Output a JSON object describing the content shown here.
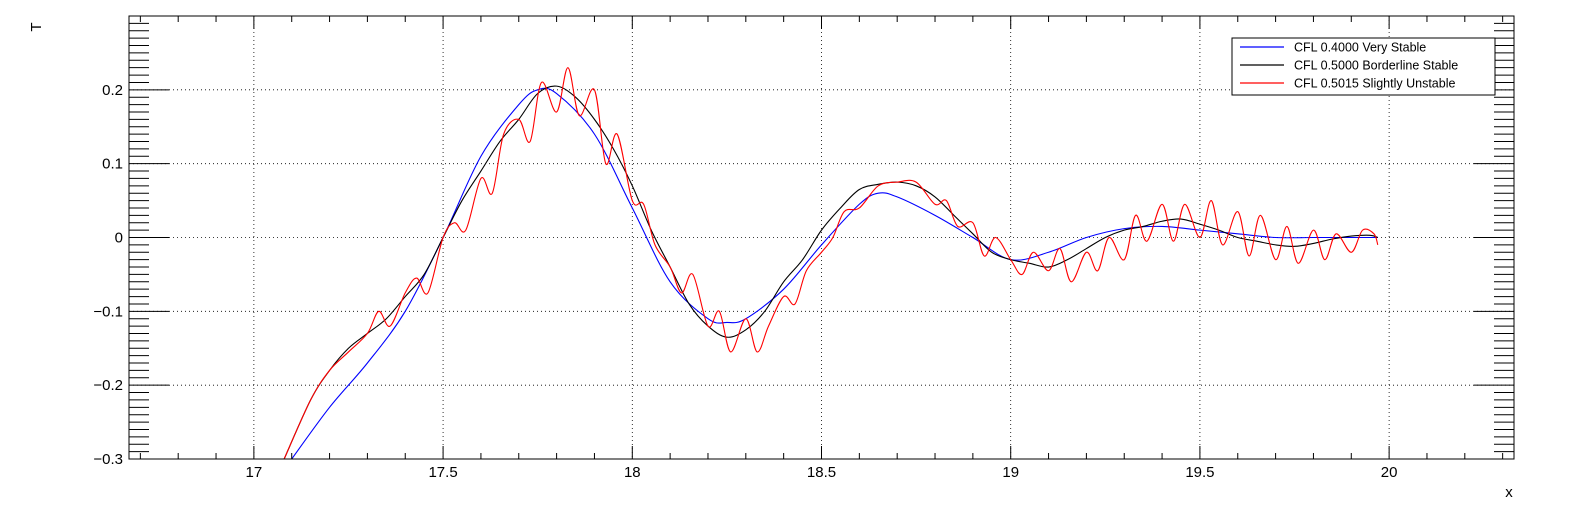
{
  "chart_data": {
    "type": "line",
    "xlabel": "x",
    "ylabel": "T",
    "xlim": [
      16.67,
      20.33
    ],
    "ylim": [
      -0.3,
      0.3
    ],
    "x_ticks": [
      17,
      17.5,
      18,
      18.5,
      19,
      19.5,
      20
    ],
    "x_tick_labels": [
      "17",
      "17.5",
      "18",
      "18.5",
      "19",
      "19.5",
      "20"
    ],
    "y_ticks": [
      -0.3,
      -0.2,
      -0.1,
      0,
      0.1,
      0.2
    ],
    "y_tick_labels": [
      "−0.3",
      "−0.2",
      "−0.1",
      "0",
      "0.1",
      "0.2"
    ],
    "grid": true,
    "legend_position": "top-right",
    "series": [
      {
        "name": "CFL 0.4000 Very Stable",
        "color": "#0000ff",
        "x": [
          17.1,
          17.2,
          17.3,
          17.4,
          17.5,
          17.6,
          17.7,
          17.75,
          17.8,
          17.9,
          18.0,
          18.1,
          18.2,
          18.25,
          18.3,
          18.4,
          18.5,
          18.6,
          18.65,
          18.7,
          18.8,
          18.9,
          19.0,
          19.1,
          19.2,
          19.3,
          19.4,
          19.5,
          19.6,
          19.7,
          19.8,
          19.9,
          19.97
        ],
        "y": [
          -0.3,
          -0.23,
          -0.17,
          -0.1,
          0.0,
          0.11,
          0.18,
          0.2,
          0.195,
          0.14,
          0.04,
          -0.06,
          -0.11,
          -0.115,
          -0.11,
          -0.07,
          -0.01,
          0.045,
          0.06,
          0.055,
          0.03,
          0.0,
          -0.03,
          -0.02,
          0.0,
          0.012,
          0.015,
          0.01,
          0.005,
          0.0,
          0.0,
          0.0,
          0.0
        ]
      },
      {
        "name": "CFL 0.5000 Borderline Stable",
        "color": "#000000",
        "x": [
          17.08,
          17.15,
          17.2,
          17.25,
          17.3,
          17.35,
          17.4,
          17.45,
          17.5,
          17.55,
          17.6,
          17.65,
          17.7,
          17.75,
          17.8,
          17.85,
          17.9,
          17.95,
          18.0,
          18.05,
          18.1,
          18.15,
          18.2,
          18.25,
          18.3,
          18.35,
          18.4,
          18.45,
          18.5,
          18.55,
          18.6,
          18.65,
          18.7,
          18.75,
          18.8,
          18.85,
          18.9,
          18.95,
          19.0,
          19.05,
          19.1,
          19.15,
          19.2,
          19.25,
          19.3,
          19.35,
          19.4,
          19.45,
          19.5,
          19.55,
          19.6,
          19.65,
          19.7,
          19.75,
          19.8,
          19.85,
          19.9,
          19.95,
          19.97
        ],
        "y": [
          -0.3,
          -0.22,
          -0.18,
          -0.15,
          -0.13,
          -0.11,
          -0.08,
          -0.05,
          0.0,
          0.05,
          0.09,
          0.13,
          0.16,
          0.195,
          0.205,
          0.19,
          0.16,
          0.12,
          0.07,
          0.01,
          -0.04,
          -0.09,
          -0.12,
          -0.135,
          -0.125,
          -0.1,
          -0.06,
          -0.03,
          0.01,
          0.04,
          0.065,
          0.072,
          0.075,
          0.07,
          0.055,
          0.03,
          0.005,
          -0.02,
          -0.03,
          -0.035,
          -0.04,
          -0.03,
          -0.015,
          0.0,
          0.01,
          0.015,
          0.022,
          0.025,
          0.018,
          0.01,
          0.0,
          -0.005,
          -0.01,
          -0.012,
          -0.008,
          -0.002,
          0.002,
          0.003,
          0.0
        ]
      },
      {
        "name": "CFL 0.5015 Slightly Unstable",
        "color": "#ff0000",
        "x": [
          17.08,
          17.15,
          17.2,
          17.25,
          17.3,
          17.33,
          17.36,
          17.4,
          17.43,
          17.46,
          17.5,
          17.53,
          17.56,
          17.6,
          17.63,
          17.66,
          17.7,
          17.73,
          17.76,
          17.8,
          17.83,
          17.86,
          17.9,
          17.93,
          17.96,
          18.0,
          18.03,
          18.06,
          18.1,
          18.13,
          18.16,
          18.2,
          18.23,
          18.26,
          18.3,
          18.33,
          18.36,
          18.4,
          18.43,
          18.46,
          18.5,
          18.53,
          18.56,
          18.6,
          18.65,
          18.7,
          18.75,
          18.8,
          18.83,
          18.86,
          18.9,
          18.93,
          18.96,
          19.0,
          19.03,
          19.06,
          19.1,
          19.13,
          19.16,
          19.2,
          19.23,
          19.26,
          19.3,
          19.33,
          19.36,
          19.4,
          19.43,
          19.46,
          19.5,
          19.53,
          19.56,
          19.6,
          19.63,
          19.66,
          19.7,
          19.73,
          19.76,
          19.8,
          19.83,
          19.86,
          19.9,
          19.93,
          19.96,
          19.97
        ],
        "y": [
          -0.3,
          -0.22,
          -0.18,
          -0.155,
          -0.13,
          -0.1,
          -0.12,
          -0.075,
          -0.055,
          -0.075,
          0.0,
          0.02,
          0.01,
          0.08,
          0.06,
          0.14,
          0.16,
          0.13,
          0.21,
          0.17,
          0.23,
          0.165,
          0.2,
          0.1,
          0.14,
          0.05,
          0.045,
          -0.01,
          -0.04,
          -0.075,
          -0.05,
          -0.12,
          -0.1,
          -0.155,
          -0.11,
          -0.155,
          -0.12,
          -0.08,
          -0.09,
          -0.045,
          -0.02,
          0.0,
          0.035,
          0.04,
          0.07,
          0.075,
          0.075,
          0.045,
          0.05,
          0.015,
          0.02,
          -0.025,
          0.0,
          -0.03,
          -0.05,
          -0.02,
          -0.045,
          -0.015,
          -0.06,
          -0.02,
          -0.045,
          0.0,
          -0.03,
          0.03,
          -0.005,
          0.045,
          -0.005,
          0.045,
          0.0,
          0.05,
          -0.01,
          0.035,
          -0.025,
          0.03,
          -0.03,
          0.015,
          -0.035,
          0.01,
          -0.03,
          0.005,
          -0.02,
          0.01,
          0.005,
          -0.01
        ]
      }
    ]
  }
}
